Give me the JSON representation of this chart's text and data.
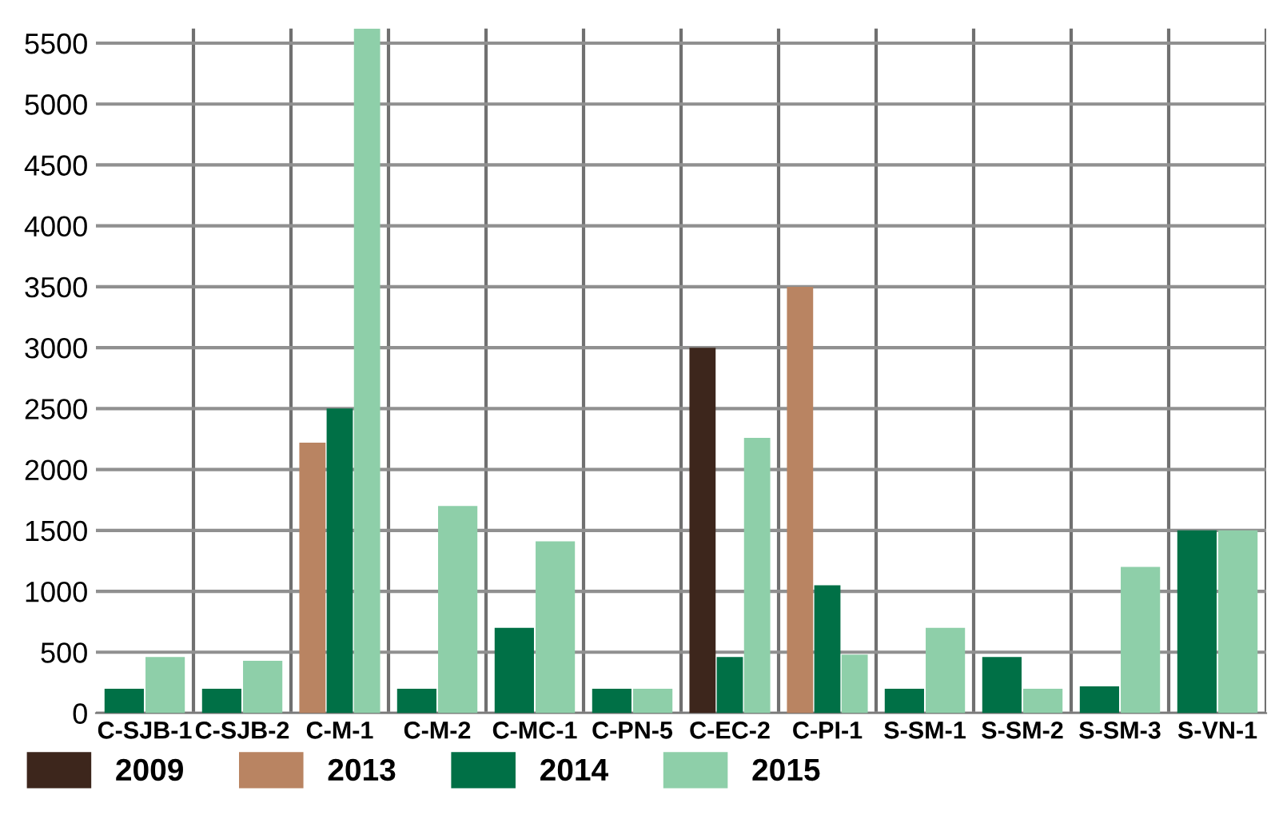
{
  "chart_data": {
    "type": "bar",
    "categories": [
      "C-SJB-1",
      "C-SJB-2",
      "C-M-1",
      "C-M-2",
      "C-MC-1",
      "C-PN-5",
      "C-EC-2",
      "C-PI-1",
      "S-SM-1",
      "S-SM-2",
      "S-SM-3",
      "S-VN-1"
    ],
    "series": [
      {
        "name": "2009",
        "color": "#3d261c",
        "values": [
          null,
          null,
          null,
          null,
          null,
          null,
          3000,
          null,
          null,
          null,
          null,
          null
        ]
      },
      {
        "name": "2013",
        "color": "#b98462",
        "values": [
          null,
          null,
          2220,
          null,
          null,
          null,
          null,
          3500,
          null,
          null,
          null,
          null
        ]
      },
      {
        "name": "2014",
        "color": "#007046",
        "values": [
          200,
          200,
          2500,
          200,
          700,
          200,
          460,
          1050,
          200,
          460,
          220,
          1500
        ]
      },
      {
        "name": "2015",
        "color": "#8ecfa9",
        "values": [
          460,
          430,
          5620,
          1700,
          1410,
          200,
          2260,
          480,
          700,
          200,
          1200,
          1500
        ]
      }
    ],
    "ylim": [
      0,
      5620
    ],
    "yticks": [
      0,
      500,
      1000,
      1500,
      2000,
      2500,
      3000,
      3500,
      4000,
      4500,
      5000,
      5500
    ],
    "grid": "y",
    "legend": "bottom left"
  }
}
